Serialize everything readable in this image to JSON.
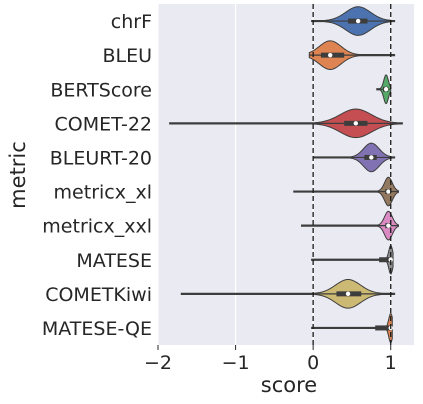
{
  "chart_data": {
    "type": "violin",
    "title": "",
    "xlabel": "score",
    "ylabel": "metric",
    "xlim": [
      -2.0,
      1.3
    ],
    "xticks": [
      -2,
      -1,
      0,
      1
    ],
    "xtick_labels": [
      "−2",
      "−1",
      "0",
      "1"
    ],
    "reference_lines": [
      0,
      1
    ],
    "reference_line_style": "dashed",
    "grid": true,
    "background_color": "#eaeaf2",
    "categories": [
      "chrF",
      "BLEU",
      "BERTScore",
      "COMET-22",
      "BLEURT-20",
      "metricx_xl",
      "metricx_xxl",
      "MATESE",
      "COMETKiwi",
      "MATESE-QE"
    ],
    "series": [
      {
        "metric": "chrF",
        "color": "#4c72b0",
        "min": -0.02,
        "max": 1.05,
        "q1": 0.45,
        "median": 0.58,
        "q3": 0.7,
        "bw": 0.16
      },
      {
        "metric": "BLEU",
        "color": "#dd8452",
        "min": -0.05,
        "max": 1.05,
        "q1": 0.1,
        "median": 0.22,
        "q3": 0.4,
        "bw": 0.14
      },
      {
        "metric": "BERTScore",
        "color": "#55a868",
        "min": 0.82,
        "max": 1.0,
        "q1": 0.9,
        "median": 0.94,
        "q3": 0.97,
        "bw": 0.03
      },
      {
        "metric": "COMET-22",
        "color": "#c44e52",
        "min": -1.85,
        "max": 1.15,
        "q1": 0.4,
        "median": 0.55,
        "q3": 0.7,
        "bw": 0.2
      },
      {
        "metric": "BLEURT-20",
        "color": "#8172b3",
        "min": 0.0,
        "max": 1.05,
        "q1": 0.66,
        "median": 0.75,
        "q3": 0.82,
        "bw": 0.1
      },
      {
        "metric": "metricx_xl",
        "color": "#937860",
        "min": -0.25,
        "max": 1.1,
        "q1": 0.93,
        "median": 0.97,
        "q3": 1.0,
        "bw": 0.05
      },
      {
        "metric": "metricx_xxl",
        "color": "#da8bc3",
        "min": -0.15,
        "max": 1.1,
        "q1": 0.93,
        "median": 0.97,
        "q3": 1.0,
        "bw": 0.05
      },
      {
        "metric": "MATESE",
        "color": "#8c8c8c",
        "min": -0.02,
        "max": 1.03,
        "q1": 0.85,
        "median": 1.0,
        "q3": 1.0,
        "bw": 0.025
      },
      {
        "metric": "COMETKiwi",
        "color": "#ccb974",
        "min": -1.7,
        "max": 1.05,
        "q1": 0.3,
        "median": 0.45,
        "q3": 0.62,
        "bw": 0.16
      },
      {
        "metric": "MATESE-QE",
        "color": "#dd8452",
        "min": -0.02,
        "max": 1.02,
        "q1": 0.8,
        "median": 1.0,
        "q3": 1.0,
        "bw": 0.025
      }
    ]
  }
}
